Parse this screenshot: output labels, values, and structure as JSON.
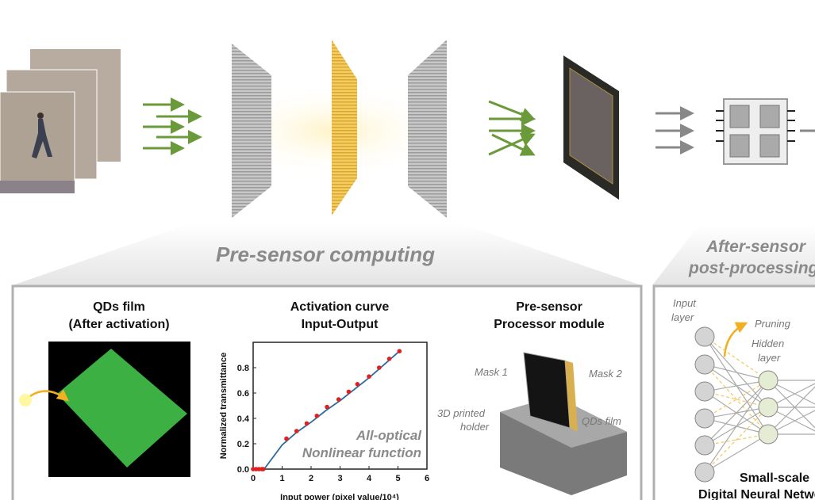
{
  "sections": {
    "pre_sensor": "Pre-sensor computing",
    "after_sensor_line1": "After-sensor",
    "after_sensor_line2": "post-processing"
  },
  "panels": {
    "qds_film": {
      "title1": "QDs film",
      "title2": "(After activation)"
    },
    "activation": {
      "title1": "Activation curve",
      "title2": "Input-Output",
      "annotation1": "All-optical",
      "annotation2": "Nonlinear function"
    },
    "module": {
      "title1": "Pre-sensor",
      "title2": "Processor module",
      "mask1": "Mask 1",
      "mask2": "Mask 2",
      "holder1": "3D printed",
      "holder2": "holder",
      "qds": "QDs film"
    },
    "network": {
      "input1": "Input",
      "input2": "layer",
      "pruning": "Pruning",
      "hidden1": "Hidden",
      "hidden2": "layer",
      "caption1": "Small-scale",
      "caption2": "Digital Neural Network"
    }
  },
  "colors": {
    "accent_green": "#6a9a3a",
    "mask_yellow": "#f0c040",
    "point_red": "#e02020",
    "curve_blue": "#2a6aa0",
    "qd_green": "#3cb043"
  },
  "chart_data": {
    "type": "scatter",
    "title": "Activation curve Input-Output",
    "xlabel": "Input power (pixel value/10⁴)",
    "ylabel": "Normalized transmittance",
    "xlim": [
      0,
      6
    ],
    "ylim": [
      0,
      1.0
    ],
    "xticks": [
      "0",
      "1",
      "2",
      "3",
      "4",
      "5",
      "6"
    ],
    "yticks": [
      "0.0",
      "0.2",
      "0.4",
      "0.6",
      "0.8"
    ],
    "points": {
      "x": [
        0,
        0.1,
        0.2,
        0.3,
        0.35,
        1.15,
        1.5,
        1.85,
        2.2,
        2.55,
        2.95,
        3.3,
        3.6,
        4.0,
        4.35,
        4.7,
        5.05
      ],
      "y": [
        0,
        0,
        0,
        0,
        0,
        0.24,
        0.3,
        0.36,
        0.42,
        0.49,
        0.55,
        0.61,
        0.67,
        0.73,
        0.8,
        0.87,
        0.93
      ]
    },
    "fit_line": {
      "x": [
        0.38,
        1.0,
        1.5,
        2.0,
        2.5,
        3.0,
        3.5,
        4.0,
        4.5,
        5.05
      ],
      "y": [
        0,
        0.19,
        0.29,
        0.37,
        0.46,
        0.54,
        0.63,
        0.72,
        0.82,
        0.93
      ]
    }
  }
}
